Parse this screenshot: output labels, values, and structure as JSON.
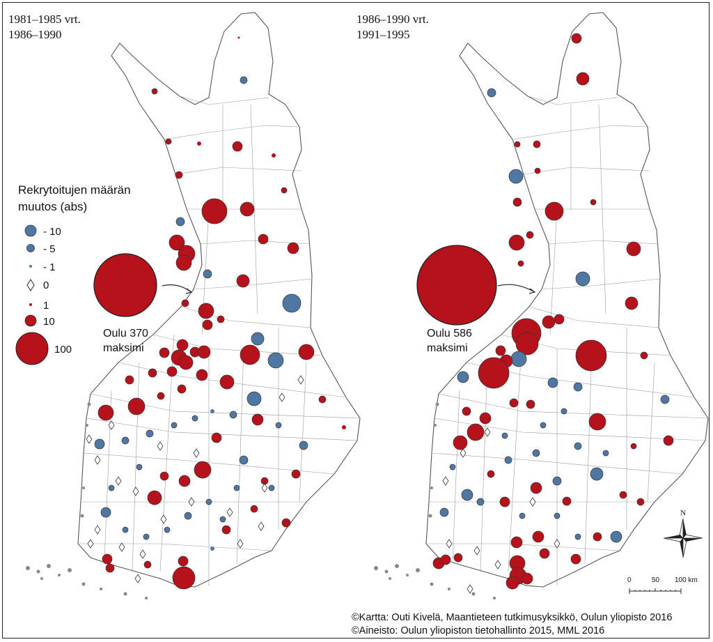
{
  "colors": {
    "increase": "#b5121b",
    "decrease": "#4f77a3",
    "outline": "#555555"
  },
  "left_map": {
    "period_line1": "1981–1985 vrt.",
    "period_line2": "1986–1990",
    "max_label_line1": "Oulu 370",
    "max_label_line2": "maksimi",
    "max_value": 370
  },
  "right_map": {
    "period_line1": "1986–1990 vrt.",
    "period_line2": "1991–1995",
    "max_label_line1": "Oulu  586",
    "max_label_line2": "maksimi",
    "max_value": 586
  },
  "legend": {
    "title_line1": "Rekrytoitujen määrän",
    "title_line2": "muutos (abs)",
    "items": [
      {
        "label": "- 10",
        "value": -10,
        "symbol": "circle-decrease"
      },
      {
        "label": "- 5",
        "value": -5,
        "symbol": "circle-decrease"
      },
      {
        "label": "- 1",
        "value": -1,
        "symbol": "circle-decrease"
      },
      {
        "label": "0",
        "value": 0,
        "symbol": "diamond"
      },
      {
        "label": "1",
        "value": 1,
        "symbol": "circle-increase"
      },
      {
        "label": "10",
        "value": 10,
        "symbol": "circle-increase"
      },
      {
        "label": "100",
        "value": 100,
        "symbol": "circle-increase"
      }
    ]
  },
  "north_arrow": {
    "label": "N"
  },
  "scale_bar": {
    "labels": [
      "0",
      "50",
      "100 km"
    ]
  },
  "credits": {
    "line1": "©Kartta: Outi Kivelä, Maantieteen tutkimusyksikkö, Oulun yliopisto 2016",
    "line2": "©Aineisto:   Oulun   yliopiston   tietohallinto   2015,   MML   2016"
  }
}
